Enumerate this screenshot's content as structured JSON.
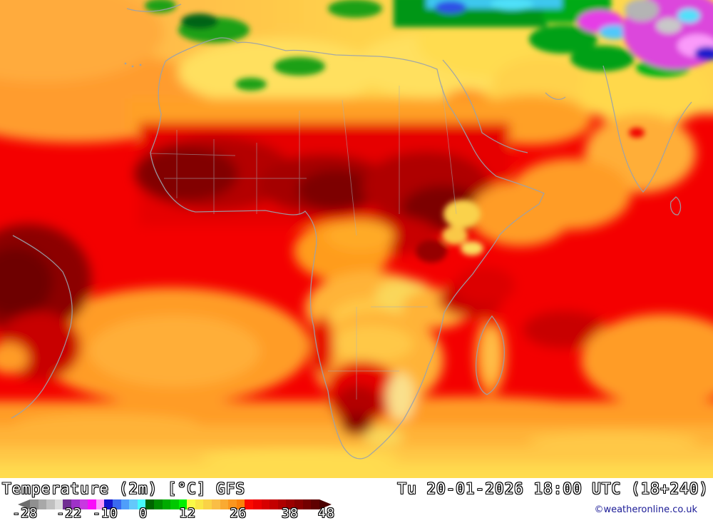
{
  "footer": {
    "title": "Temperature (2m) [°C] GFS",
    "timestamp": "Tu 20-01-2026 18:00 UTC (18+240)",
    "copyright": "©weatheronline.co.uk"
  },
  "legend": {
    "parameter": "Temperature (2m)",
    "unit": "°C",
    "model": "GFS",
    "tick_labels": [
      "-28",
      "-22",
      "-10",
      "0",
      "12",
      "26",
      "38",
      "48"
    ],
    "tick_positions_pct": [
      2.3,
      16.4,
      27.9,
      40.0,
      54.1,
      70.3,
      86.8,
      98.4
    ],
    "left_arrow_color": "#6e6e6e",
    "right_arrow_color": "#4b0000",
    "segment_colors": [
      "#909090",
      "#a8a8a8",
      "#c0c0c0",
      "#dcdcdc",
      "#702e92",
      "#9e32c8",
      "#c838e0",
      "#fa0afa",
      "#fa9afa",
      "#1414cc",
      "#3a6af0",
      "#4f9efa",
      "#64c8fa",
      "#46fafa",
      "#006400",
      "#008c00",
      "#00aa00",
      "#00c800",
      "#00f000",
      "#fafa46",
      "#fae646",
      "#fad246",
      "#fabe46",
      "#faaa32",
      "#fa961e",
      "#fa820a",
      "#fa0a00",
      "#eb0000",
      "#d70000",
      "#c30000",
      "#af0000",
      "#9b0000",
      "#870000",
      "#730000",
      "#5f0000"
    ]
  },
  "map": {
    "palette": {
      "hot_ocean_red": "#f40000",
      "sahel_dark_red": "#b40000",
      "sahel_maroon": "#7d0000",
      "ocean_orange": "#fa9c28",
      "ocean_amber": "#ffb337",
      "sahara_gold": "#ffd24b",
      "bottom_yellow": "#ffdc50",
      "pale_coast_yellow": "#fae08c",
      "highland_green": "#1ea014",
      "anatolia_green": "#009614",
      "cold_cyan": "#50e1fa",
      "cold_blue": "#2d50e6",
      "cold_magenta": "#dc46dc",
      "cold_pink": "#fa9afa",
      "cold_gray": "#b4b4b4",
      "border_gray": "#9aa2ac"
    }
  }
}
